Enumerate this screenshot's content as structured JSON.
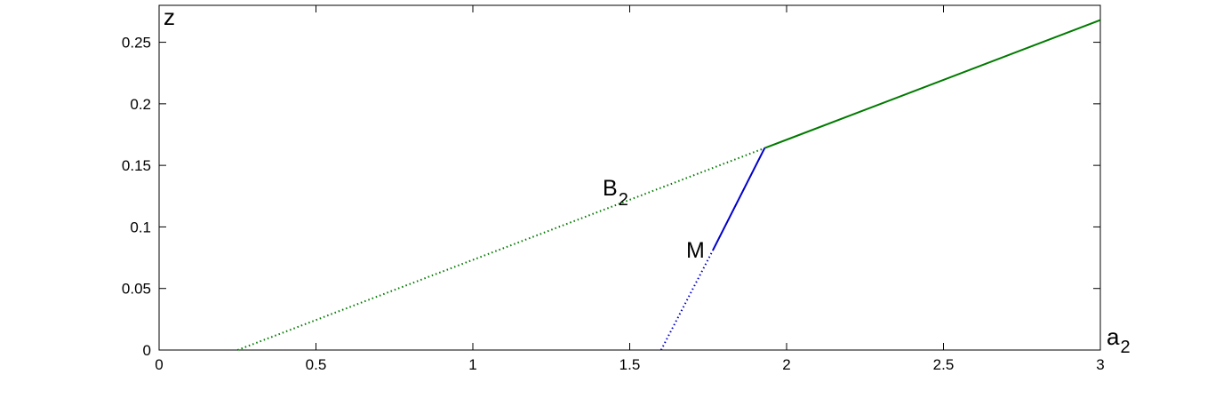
{
  "chart_data": {
    "type": "line",
    "title": "",
    "xlabel": {
      "base": "a",
      "sub": "2"
    },
    "ylabel": "z",
    "xlim": [
      0,
      3
    ],
    "ylim": [
      0,
      0.28
    ],
    "xticks": [
      0,
      0.5,
      1,
      1.5,
      2,
      2.5,
      3
    ],
    "xtick_labels": [
      "0",
      "0.5",
      "1",
      "1.5",
      "2",
      "2.5",
      "3"
    ],
    "yticks": [
      0,
      0.05,
      0.1,
      0.15,
      0.2,
      0.25
    ],
    "ytick_labels": [
      "0",
      "0.05",
      "0.1",
      "0.15",
      "0.2",
      "0.25"
    ],
    "grid": false,
    "box": true,
    "series": [
      {
        "label": {
          "base": "B",
          "sub": "2"
        },
        "color": "#007a00",
        "segments": [
          {
            "style": "dotted",
            "points": [
              [
                0.25,
                0
              ],
              [
                1.93,
                0.164
              ]
            ]
          },
          {
            "style": "solid",
            "points": [
              [
                1.93,
                0.164
              ],
              [
                3.0,
                0.268
              ]
            ]
          }
        ]
      },
      {
        "label": {
          "base": "M",
          "sub": ""
        },
        "color": "#0000cc",
        "segments": [
          {
            "style": "dotted",
            "points": [
              [
                1.6,
                0
              ],
              [
                1.765,
                0.081
              ]
            ]
          },
          {
            "style": "solid",
            "points": [
              [
                1.765,
                0.081
              ],
              [
                1.93,
                0.164
              ]
            ]
          }
        ]
      }
    ]
  }
}
